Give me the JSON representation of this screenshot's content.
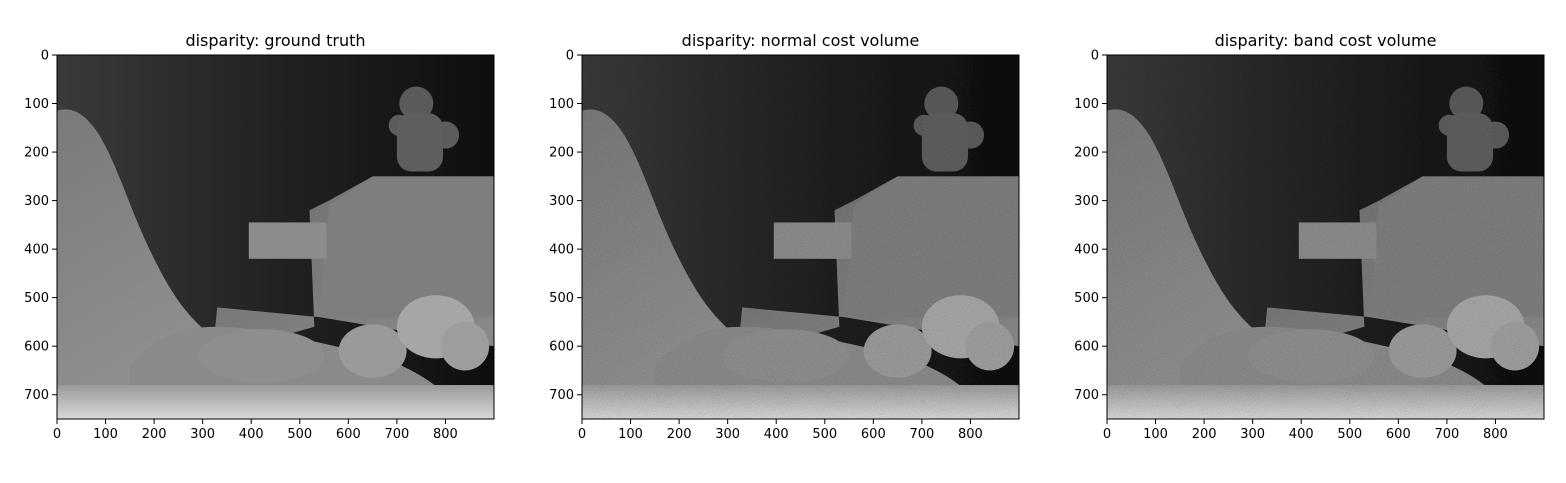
{
  "chart_data": [
    {
      "type": "heatmap",
      "title": "disparity: ground truth",
      "xlabel": "",
      "ylabel": "",
      "xlim": [
        0,
        900
      ],
      "ylim": [
        750,
        0
      ],
      "xticks": [
        0,
        100,
        200,
        300,
        400,
        500,
        600,
        700,
        800
      ],
      "yticks": [
        0,
        100,
        200,
        300,
        400,
        500,
        600,
        700
      ],
      "colormap": "gray"
    },
    {
      "type": "heatmap",
      "title": "disparity: normal cost volume",
      "xlabel": "",
      "ylabel": "",
      "xlim": [
        0,
        900
      ],
      "ylim": [
        750,
        0
      ],
      "xticks": [
        0,
        100,
        200,
        300,
        400,
        500,
        600,
        700,
        800
      ],
      "yticks": [
        0,
        100,
        200,
        300,
        400,
        500,
        600,
        700
      ],
      "colormap": "gray"
    },
    {
      "type": "heatmap",
      "title": "disparity: band cost volume",
      "xlabel": "",
      "ylabel": "",
      "xlim": [
        0,
        900
      ],
      "ylim": [
        750,
        0
      ],
      "xticks": [
        0,
        100,
        200,
        300,
        400,
        500,
        600,
        700,
        800
      ],
      "yticks": [
        0,
        100,
        200,
        300,
        400,
        500,
        600,
        700
      ],
      "colormap": "gray"
    }
  ]
}
